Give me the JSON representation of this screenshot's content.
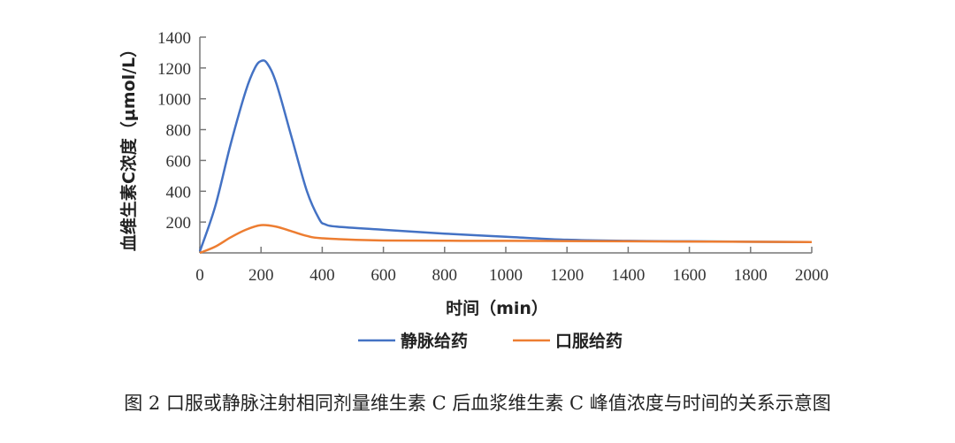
{
  "chart_data": {
    "type": "line",
    "title": "",
    "xlabel": "时间（min）",
    "ylabel": "血维生素C浓度（μmol/L）",
    "xlim": [
      0,
      2000
    ],
    "ylim": [
      0,
      1400
    ],
    "xticks": [
      0,
      200,
      400,
      600,
      800,
      1000,
      1200,
      1400,
      1600,
      1800,
      2000
    ],
    "yticks": [
      200,
      400,
      600,
      800,
      1000,
      1200,
      1400
    ],
    "grid": false,
    "legend_position": "bottom",
    "series": [
      {
        "name": "静脉给药",
        "color": "#4472c4",
        "x": [
          0,
          50,
          100,
          150,
          180,
          200,
          220,
          250,
          300,
          350,
          390,
          410,
          450,
          600,
          800,
          1000,
          1200,
          1400,
          1600,
          2000
        ],
        "y": [
          10,
          300,
          700,
          1050,
          1200,
          1245,
          1230,
          1100,
          750,
          400,
          220,
          185,
          170,
          150,
          125,
          105,
          85,
          78,
          75,
          70
        ]
      },
      {
        "name": "口服给药",
        "color": "#ed7d31",
        "x": [
          0,
          50,
          100,
          150,
          200,
          250,
          300,
          350,
          400,
          600,
          1000,
          1400,
          2000
        ],
        "y": [
          0,
          40,
          100,
          150,
          180,
          170,
          140,
          110,
          95,
          80,
          78,
          75,
          70
        ]
      }
    ]
  },
  "caption": "图 2 口服或静脉注射相同剂量维生素 C 后血浆维生素 C 峰值浓度与时间的关系示意图"
}
